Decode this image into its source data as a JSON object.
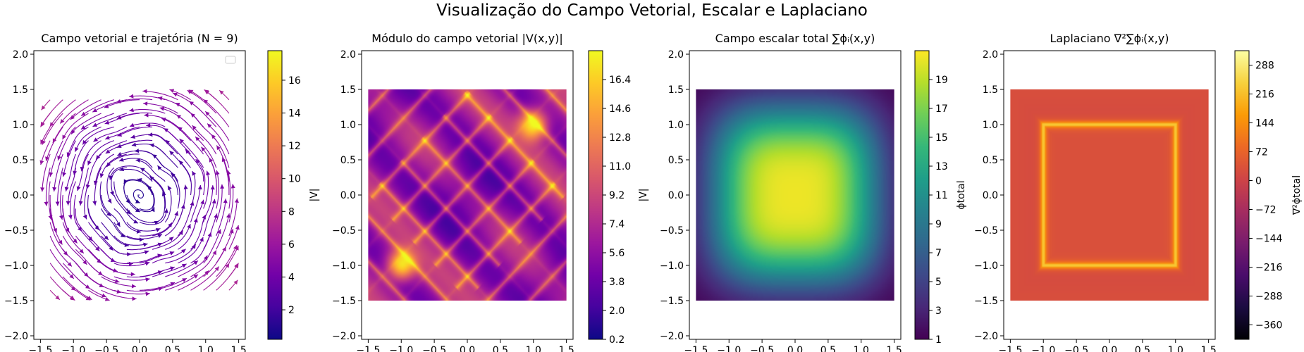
{
  "figure": {
    "title": "Visualização do Campo Vetorial, Escalar e Laplaciano"
  },
  "chart_data": [
    {
      "type": "streamplot",
      "title": "Campo vetorial e trajetória (N = 9)",
      "xlabel": "",
      "ylabel": "",
      "xlim": [
        -1.6,
        1.6
      ],
      "ylim": [
        -2.05,
        2.05
      ],
      "x_ticks": [
        "−1.5",
        "−1.0",
        "−0.5",
        "0.0",
        "0.5",
        "1.0",
        "1.5"
      ],
      "x_tick_values": [
        -1.5,
        -1.0,
        -0.5,
        0.0,
        0.5,
        1.0,
        1.5
      ],
      "y_ticks": [
        "−2.0",
        "−1.5",
        "−1.0",
        "−0.5",
        "0.0",
        "0.5",
        "1.0",
        "1.5",
        "2.0"
      ],
      "y_tick_values": [
        -2.0,
        -1.5,
        -1.0,
        -0.5,
        0.0,
        0.5,
        1.0,
        1.5,
        2.0
      ],
      "data_extent": [
        -1.5,
        1.5,
        -1.5,
        1.5
      ],
      "colormap": "plasma",
      "legend": "upper right (empty)",
      "colorbar": {
        "label": "|V|",
        "range": [
          0.2,
          17.8
        ],
        "ticks": [
          "2",
          "4",
          "6",
          "8",
          "10",
          "12",
          "14",
          "16"
        ],
        "tick_values": [
          2,
          4,
          6,
          8,
          10,
          12,
          14,
          16
        ]
      }
    },
    {
      "type": "heatmap",
      "title": "Módulo do campo vetorial |V(x,y)|",
      "xlabel": "",
      "ylabel": "",
      "xlim": [
        -1.6,
        1.6
      ],
      "ylim": [
        -2.05,
        2.05
      ],
      "x_ticks": [
        "−1.5",
        "−1.0",
        "−0.5",
        "0.0",
        "0.5",
        "1.0",
        "1.5"
      ],
      "x_tick_values": [
        -1.5,
        -1.0,
        -0.5,
        0.0,
        0.5,
        1.0,
        1.5
      ],
      "y_ticks": [
        "−2.0",
        "−1.5",
        "−1.0",
        "−0.5",
        "0.0",
        "0.5",
        "1.0",
        "1.5",
        "2.0"
      ],
      "y_tick_values": [
        -2.0,
        -1.5,
        -1.0,
        -0.5,
        0.0,
        0.5,
        1.0,
        1.5,
        2.0
      ],
      "data_extent": [
        -1.5,
        1.5,
        -1.5,
        1.5
      ],
      "colormap": "plasma",
      "colorbar": {
        "label": "|V|",
        "range": [
          0.2,
          18.2
        ],
        "ticks": [
          "0.2",
          "2.0",
          "3.8",
          "5.6",
          "7.4",
          "9.2",
          "11.0",
          "12.8",
          "14.6",
          "16.4"
        ],
        "tick_values": [
          0.2,
          2.0,
          3.8,
          5.6,
          7.4,
          9.2,
          11.0,
          12.8,
          14.6,
          16.4
        ]
      }
    },
    {
      "type": "heatmap",
      "title": "Campo escalar total ∑ϕᵢ(x,y)",
      "xlabel": "",
      "ylabel": "",
      "xlim": [
        -1.6,
        1.6
      ],
      "ylim": [
        -2.05,
        2.05
      ],
      "x_ticks": [
        "−1.5",
        "−1.0",
        "−0.5",
        "0.0",
        "0.5",
        "1.0",
        "1.5"
      ],
      "x_tick_values": [
        -1.5,
        -1.0,
        -0.5,
        0.0,
        0.5,
        1.0,
        1.5
      ],
      "y_ticks": [
        "−2.0",
        "−1.5",
        "−1.0",
        "−0.5",
        "0.0",
        "0.5",
        "1.0",
        "1.5",
        "2.0"
      ],
      "y_tick_values": [
        -2.0,
        -1.5,
        -1.0,
        -0.5,
        0.0,
        0.5,
        1.0,
        1.5,
        2.0
      ],
      "data_extent": [
        -1.5,
        1.5,
        -1.5,
        1.5
      ],
      "colormap": "viridis",
      "colorbar": {
        "label": "ϕtotal",
        "range": [
          1,
          21
        ],
        "ticks": [
          "1",
          "3",
          "5",
          "7",
          "9",
          "11",
          "13",
          "15",
          "17",
          "19"
        ],
        "tick_values": [
          1,
          3,
          5,
          7,
          9,
          11,
          13,
          15,
          17,
          19
        ]
      }
    },
    {
      "type": "heatmap",
      "title": "Laplaciano ∇²∑ϕᵢ(x,y)",
      "xlabel": "",
      "ylabel": "",
      "xlim": [
        -1.6,
        1.6
      ],
      "ylim": [
        -2.05,
        2.05
      ],
      "x_ticks": [
        "−1.5",
        "−1.0",
        "−0.5",
        "0.0",
        "0.5",
        "1.0",
        "1.5"
      ],
      "x_tick_values": [
        -1.5,
        -1.0,
        -0.5,
        0.0,
        0.5,
        1.0,
        1.5
      ],
      "y_ticks": [
        "−2.0",
        "−1.5",
        "−1.0",
        "−0.5",
        "0.0",
        "0.5",
        "1.0",
        "1.5",
        "2.0"
      ],
      "y_tick_values": [
        -2.0,
        -1.5,
        -1.0,
        -0.5,
        0.0,
        0.5,
        1.0,
        1.5,
        2.0
      ],
      "data_extent": [
        -1.5,
        1.5,
        -1.5,
        1.5
      ],
      "colormap": "inferno",
      "colorbar": {
        "label": "∇²ϕtotal",
        "range": [
          -396,
          324
        ],
        "ticks": [
          "−360",
          "−288",
          "−216",
          "−144",
          "−72",
          "0",
          "72",
          "144",
          "216",
          "288"
        ],
        "tick_values": [
          -360,
          -288,
          -216,
          -144,
          -72,
          0,
          72,
          144,
          216,
          288
        ]
      }
    }
  ]
}
